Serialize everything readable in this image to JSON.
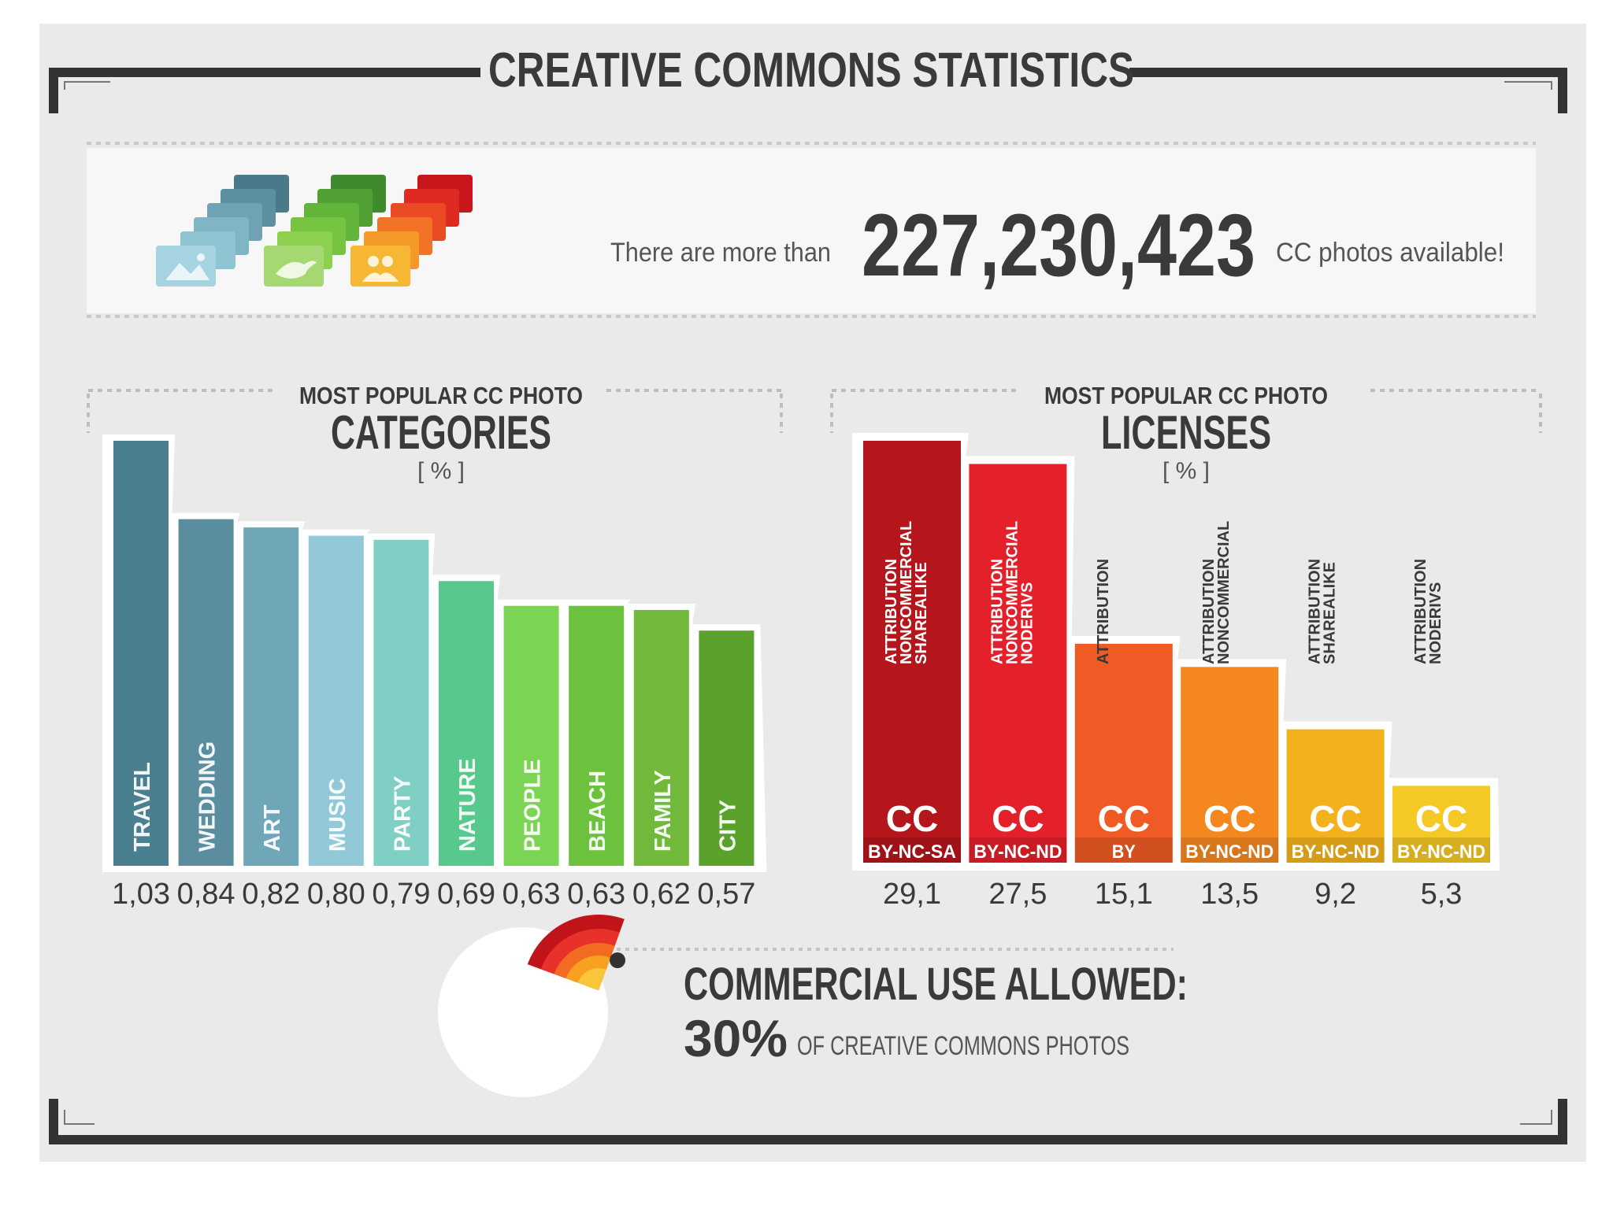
{
  "title": "CREATIVE COMMONS STATISTICS",
  "banner": {
    "prefix": "There are more than",
    "number": "227,230,423",
    "suffix": "CC photos available!"
  },
  "colors": {
    "background": "#eaeaea",
    "panel": "#f7f7f7",
    "frame": "#333333",
    "text": "#3a3a3a"
  },
  "chart_data": [
    {
      "type": "bar",
      "subtitle": "MOST POPULAR CC PHOTO",
      "title": "CATEGORIES",
      "unit": "[ % ]",
      "categories": [
        "TRAVEL",
        "WEDDING",
        "ART",
        "MUSIC",
        "PARTY",
        "NATURE",
        "PEOPLE",
        "BEACH",
        "FAMILY",
        "CITY"
      ],
      "values": [
        1.03,
        0.84,
        0.82,
        0.8,
        0.79,
        0.69,
        0.63,
        0.63,
        0.62,
        0.57
      ],
      "value_labels": [
        "1,03",
        "0,84",
        "0,82",
        "0,80",
        "0,79",
        "0,69",
        "0,63",
        "0,63",
        "0,62",
        "0,57"
      ],
      "colors": [
        "#4a7f8f",
        "#5a8e9e",
        "#6fa7b8",
        "#93c8d8",
        "#7fcfc4",
        "#58c98d",
        "#7bd454",
        "#6cc23c",
        "#70b93a",
        "#5aa22c"
      ],
      "ylim": [
        0,
        1.03
      ]
    },
    {
      "type": "bar",
      "subtitle": "MOST POPULAR CC PHOTO",
      "title": "LICENSES",
      "unit": "[ % ]",
      "categories": [
        "ATTRIBUTION NONCOMMERCIAL SHAREALIKE",
        "ATTRIBUTION NONCOMMERCIAL NODERIVS",
        "ATTRIBUTION",
        "ATTRIBUTION NONCOMMERCIAL",
        "ATTRIBUTION SHAREALIKE",
        "ATTRIBUTION NODERIVS"
      ],
      "codes": [
        "BY-NC-SA",
        "BY-NC-ND",
        "BY",
        "BY-NC-ND",
        "BY-NC-ND",
        "BY-NC-ND"
      ],
      "badge": "CC",
      "values": [
        29.1,
        27.5,
        15.1,
        13.5,
        9.2,
        5.3
      ],
      "value_labels": [
        "29,1",
        "27,5",
        "15,1",
        "13,5",
        "9,2",
        "5,3"
      ],
      "colors": [
        "#b5161c",
        "#e4202a",
        "#ef5a25",
        "#f5871f",
        "#f3b21c",
        "#f4c825"
      ],
      "ylim": [
        0,
        29.1
      ]
    }
  ],
  "commercial": {
    "heading": "COMMERCIAL USE ALLOWED:",
    "percent_label": "30%",
    "caption": "OF CREATIVE COMMONS PHOTOS",
    "value": 30
  },
  "icons": [
    "photo-icon",
    "bird-icon",
    "people-icon",
    "commercial-fan-icon"
  ]
}
